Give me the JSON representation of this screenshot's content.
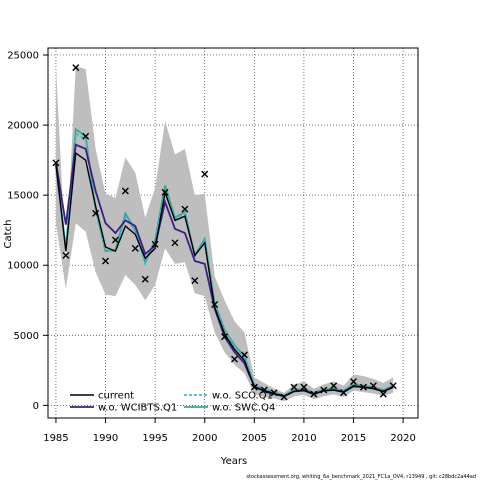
{
  "chart_data": {
    "type": "line",
    "xlabel": "Years",
    "ylabel": "Catch",
    "credit": "stockassessment.org,  whiting_6a_benchmark_2021_FC1a_OV4,  r13949 ,  git: c28bdc2a44ad",
    "xlim": [
      1984.2,
      2021.5
    ],
    "ylim": [
      -900,
      25500
    ],
    "x_ticks": [
      1985,
      1990,
      1995,
      2000,
      2005,
      2010,
      2015,
      2020
    ],
    "y_ticks": [
      0,
      5000,
      10000,
      15000,
      20000,
      25000
    ],
    "grid": true,
    "legend": {
      "position": "bottom-left",
      "columns": 2
    },
    "years": [
      1985,
      1986,
      1987,
      1988,
      1989,
      1990,
      1991,
      1992,
      1993,
      1994,
      1995,
      1996,
      1997,
      1998,
      1999,
      2000,
      2001,
      2002,
      2003,
      2004,
      2005,
      2006,
      2007,
      2008,
      2009,
      2010,
      2011,
      2012,
      2013,
      2014,
      2015,
      2016,
      2017,
      2018,
      2019
    ],
    "band": {
      "color": "#bebebe",
      "upper": [
        24200,
        10200,
        24200,
        24000,
        18300,
        15100,
        14800,
        17700,
        16600,
        13400,
        15500,
        20300,
        17900,
        18300,
        15000,
        15100,
        9200,
        7500,
        6000,
        5200,
        2000,
        1600,
        1200,
        900,
        1500,
        1700,
        1200,
        1500,
        1700,
        1400,
        2200,
        2100,
        1900,
        1600,
        2000
      ],
      "lower": [
        13000,
        8300,
        13000,
        12400,
        9500,
        7900,
        7800,
        9300,
        8600,
        7500,
        8600,
        11200,
        10100,
        10200,
        8000,
        7800,
        5200,
        3800,
        2900,
        2300,
        800,
        600,
        500,
        300,
        650,
        750,
        450,
        650,
        780,
        600,
        1050,
        950,
        850,
        650,
        900
      ]
    },
    "observations": {
      "marker": "x",
      "x": [
        1985,
        1986,
        1987,
        1988,
        1989,
        1990,
        1991,
        1992,
        1993,
        1994,
        1995,
        1996,
        1997,
        1998,
        1999,
        2000,
        2001,
        2002,
        2003,
        2004,
        2005,
        2006,
        2007,
        2008,
        2009,
        2010,
        2011,
        2012,
        2013,
        2014,
        2015,
        2016,
        2017,
        2018,
        2019
      ],
      "y": [
        17300,
        10700,
        24100,
        19200,
        13700,
        10300,
        11800,
        15300,
        11200,
        9000,
        11500,
        15200,
        11600,
        14000,
        8900,
        16500,
        7200,
        4900,
        3300,
        3600,
        1300,
        1100,
        900,
        600,
        1300,
        1300,
        800,
        1100,
        1400,
        900,
        1700,
        1300,
        1400,
        800,
        1400
      ]
    },
    "series": [
      {
        "name": "current",
        "color": "#000000",
        "dash": "solid",
        "values": [
          17200,
          11000,
          18000,
          17500,
          14200,
          11300,
          11000,
          12800,
          12200,
          10500,
          11200,
          15200,
          13200,
          13500,
          10700,
          11600,
          7000,
          5100,
          4000,
          3200,
          1300,
          1050,
          850,
          650,
          1000,
          1100,
          800,
          1050,
          1100,
          950,
          1400,
          1300,
          1200,
          1000,
          1300
        ]
      },
      {
        "name": "w.o. WCIBTS.Q1",
        "color": "#3c1e84",
        "dash": "solid",
        "values": [
          17400,
          12900,
          18600,
          18300,
          15300,
          13000,
          12300,
          13200,
          12800,
          10800,
          11400,
          14500,
          12600,
          12300,
          10300,
          10100,
          6900,
          4900,
          3800,
          3000,
          1350,
          1000,
          800,
          650,
          1000,
          1050,
          800,
          1050,
          1100,
          950,
          1350,
          1300,
          1200,
          1000,
          1300
        ]
      },
      {
        "name": "w.o. SCO.Q1",
        "color": "#40b8d0",
        "dash": "dashed",
        "values": [
          17000,
          11300,
          19400,
          19000,
          14100,
          11100,
          11000,
          13500,
          12400,
          10100,
          11700,
          15400,
          13300,
          13700,
          10600,
          11800,
          7200,
          5300,
          4200,
          3400,
          1400,
          1100,
          900,
          700,
          1050,
          1150,
          850,
          1100,
          1150,
          1000,
          1450,
          1350,
          1250,
          1050,
          1350
        ]
      },
      {
        "name": "w.o. SWC.Q4",
        "color": "#3aa68e",
        "dash": "solid",
        "values": [
          17100,
          11200,
          19700,
          19200,
          14000,
          11000,
          11100,
          13700,
          12500,
          10200,
          11800,
          15700,
          13400,
          13800,
          10700,
          11900,
          7300,
          5400,
          4300,
          3500,
          1450,
          1150,
          950,
          700,
          1100,
          1200,
          900,
          1150,
          1200,
          1050,
          1500,
          1400,
          1300,
          1100,
          1400
        ]
      }
    ]
  }
}
